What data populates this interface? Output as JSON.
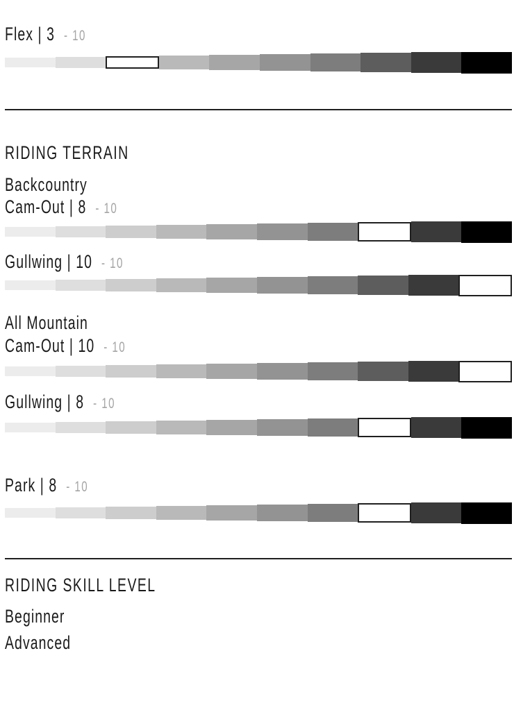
{
  "palette": {
    "background": "#ffffff",
    "text": "#1a1a1a",
    "muted": "#a5a5a5",
    "divider": "#1f1f1f",
    "selected_fill": "#ffffff",
    "selected_border": "#1f1f1f",
    "segment_colors": [
      "#ececec",
      "#dedede",
      "#cdcdcd",
      "#b9b9b9",
      "#a6a6a6",
      "#939393",
      "#7d7d7d",
      "#5d5d5d",
      "#3a3a3a",
      "#000000"
    ]
  },
  "flex": {
    "label": "Flex",
    "separator": "|",
    "value": "3",
    "suffix": "- 10",
    "rating": 3,
    "max": 10
  },
  "terrain": {
    "heading": "RIDING TERRAIN",
    "backcountry": {
      "name": "Backcountry",
      "camout": {
        "label": "Cam-Out",
        "separator": "|",
        "value": "8",
        "suffix": "- 10",
        "rating": 8,
        "max": 10
      },
      "gullwing": {
        "label": "Gullwing",
        "separator": "|",
        "value": "10",
        "suffix": "- 10",
        "rating": 10,
        "max": 10
      }
    },
    "allmountain": {
      "name": "All Mountain",
      "camout": {
        "label": "Cam-Out",
        "separator": "|",
        "value": "10",
        "suffix": "- 10",
        "rating": 10,
        "max": 10
      },
      "gullwing": {
        "label": "Gullwing",
        "separator": "|",
        "value": "8",
        "suffix": "- 10",
        "rating": 8,
        "max": 10
      }
    },
    "park": {
      "label": "Park",
      "separator": "|",
      "value": "8",
      "suffix": "- 10",
      "rating": 8,
      "max": 10
    }
  },
  "skill": {
    "heading": "RIDING SKILL LEVEL",
    "beginner": "Beginner",
    "advanced": "Advanced"
  },
  "chart_data": {
    "type": "bar",
    "scale_min": 1,
    "scale_max": 10,
    "ratings": [
      {
        "category": "Flex",
        "group": null,
        "value": 3,
        "max": 10
      },
      {
        "category": "Cam-Out",
        "group": "Backcountry",
        "value": 8,
        "max": 10
      },
      {
        "category": "Gullwing",
        "group": "Backcountry",
        "value": 10,
        "max": 10
      },
      {
        "category": "Cam-Out",
        "group": "All Mountain",
        "value": 10,
        "max": 10
      },
      {
        "category": "Gullwing",
        "group": "All Mountain",
        "value": 8,
        "max": 10
      },
      {
        "category": "Park",
        "group": null,
        "value": 8,
        "max": 10
      }
    ],
    "skill_levels": [
      "Beginner",
      "Advanced"
    ]
  }
}
